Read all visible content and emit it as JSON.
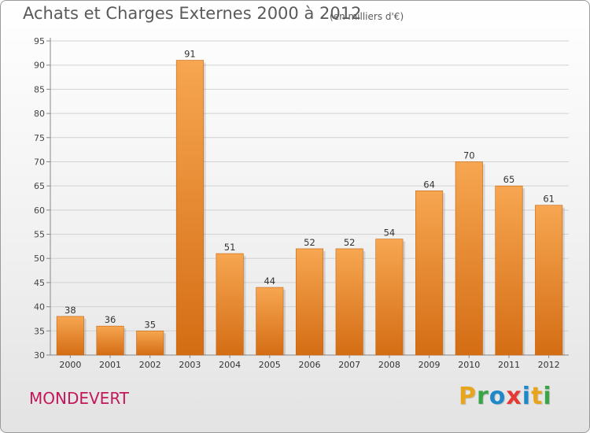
{
  "header": {
    "title": "Achats et Charges Externes 2000 à 2012",
    "subtitle": "(en milliers d'€)"
  },
  "footer": {
    "commune": "MONDEVERT",
    "logo": "Proxiti"
  },
  "colors": {
    "bar_top": "#f7a651",
    "bar_bottom": "#d46d14",
    "commune_text": "#c2185b",
    "logo_letters": [
      "#e7a51d",
      "#39a548",
      "#1e88c9",
      "#e53935",
      "#1e88c9",
      "#e7a51d",
      "#39a548"
    ]
  },
  "chart_data": {
    "type": "bar",
    "categories": [
      "2000",
      "2001",
      "2002",
      "2003",
      "2004",
      "2005",
      "2006",
      "2007",
      "2008",
      "2009",
      "2010",
      "2011",
      "2012"
    ],
    "values": [
      38,
      36,
      35,
      91,
      51,
      44,
      52,
      52,
      54,
      64,
      70,
      65,
      61
    ],
    "ylim": [
      30,
      95
    ],
    "yticks": [
      30,
      35,
      40,
      45,
      50,
      55,
      60,
      65,
      70,
      75,
      80,
      85,
      90,
      95
    ],
    "grid": true,
    "data_labels": true
  }
}
